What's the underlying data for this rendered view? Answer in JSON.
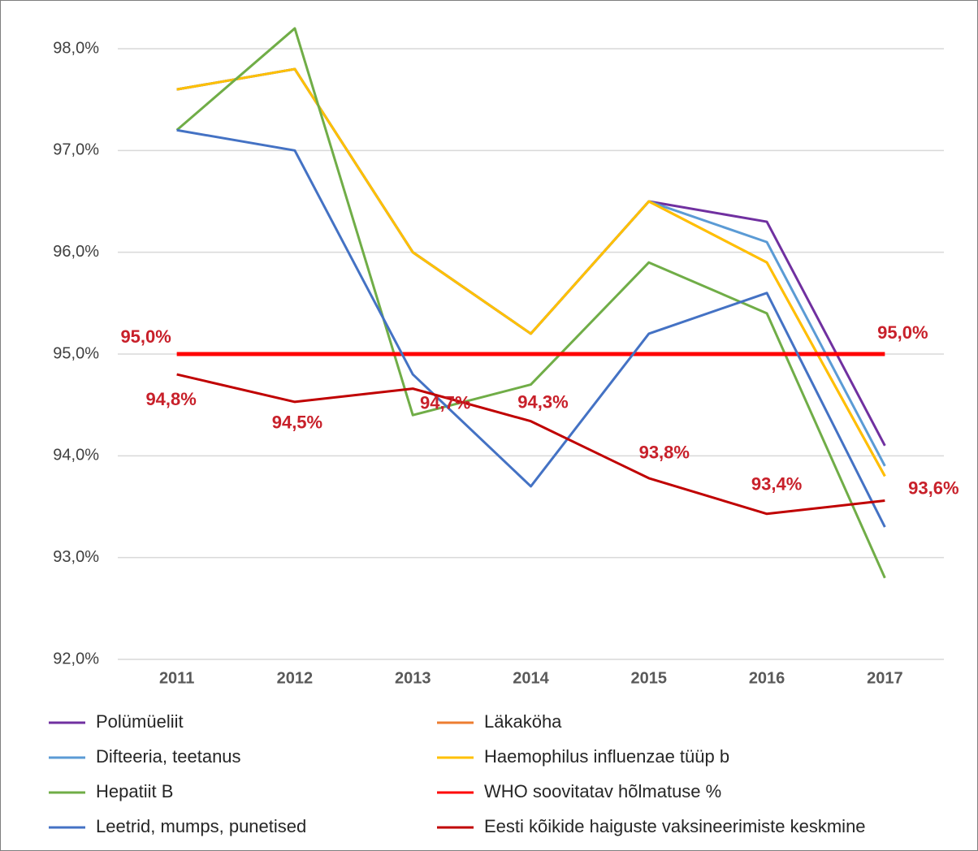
{
  "chart_data": {
    "type": "line",
    "categories": [
      "2011",
      "2012",
      "2013",
      "2014",
      "2015",
      "2016",
      "2017"
    ],
    "ylim": [
      92,
      98.3
    ],
    "yticks": [
      {
        "value": 92,
        "label": "92,0%"
      },
      {
        "value": 93,
        "label": "93,0%"
      },
      {
        "value": 94,
        "label": "94,0%"
      },
      {
        "value": 95,
        "label": "95,0%"
      },
      {
        "value": 96,
        "label": "96,0%"
      },
      {
        "value": 97,
        "label": "97,0%"
      },
      {
        "value": 98,
        "label": "98,0%"
      }
    ],
    "grid": true,
    "series": [
      {
        "name": "Polümüeliit",
        "color": "#7030a0",
        "values": [
          97.6,
          97.8,
          96.0,
          95.2,
          96.5,
          96.3,
          94.1
        ]
      },
      {
        "name": "Läkaköha",
        "color": "#ed7d31",
        "values": [
          97.6,
          97.8,
          96.0,
          95.2,
          96.5,
          95.9,
          93.8
        ]
      },
      {
        "name": "Difteeria, teetanus",
        "color": "#5b9bd5",
        "values": [
          97.6,
          97.8,
          96.0,
          95.2,
          96.5,
          96.1,
          93.9
        ]
      },
      {
        "name": "Haemophilus influenzae tüüp b",
        "color": "#ffc000",
        "values": [
          97.6,
          97.8,
          96.0,
          95.2,
          96.5,
          95.9,
          93.8
        ]
      },
      {
        "name": "Hepatiit B",
        "color": "#70ad47",
        "values": [
          97.2,
          98.2,
          94.4,
          94.7,
          95.9,
          95.4,
          92.8
        ]
      },
      {
        "name": "WHO soovitatav hõlmatuse %",
        "color": "#ff0000",
        "values": [
          95.0,
          95.0,
          95.0,
          95.0,
          95.0,
          95.0,
          95.0
        ],
        "value_labels": [
          "95,0%",
          null,
          null,
          null,
          null,
          null,
          "95,0%"
        ]
      },
      {
        "name": "Leetrid, mumps, punetised",
        "color": "#4472c4",
        "values": [
          97.2,
          97.0,
          94.8,
          93.7,
          95.2,
          95.6,
          93.3
        ]
      },
      {
        "name": "Eesti kõikide haiguste vaksineerimiste keskmine",
        "color": "#c00000",
        "values": [
          94.8,
          94.53,
          94.66,
          94.34,
          93.78,
          93.43,
          93.56
        ],
        "value_labels": [
          "94,8%",
          "94,5%",
          "94,7%",
          "94,3%",
          "93,8%",
          "93,4%",
          "93,6%"
        ]
      }
    ]
  }
}
